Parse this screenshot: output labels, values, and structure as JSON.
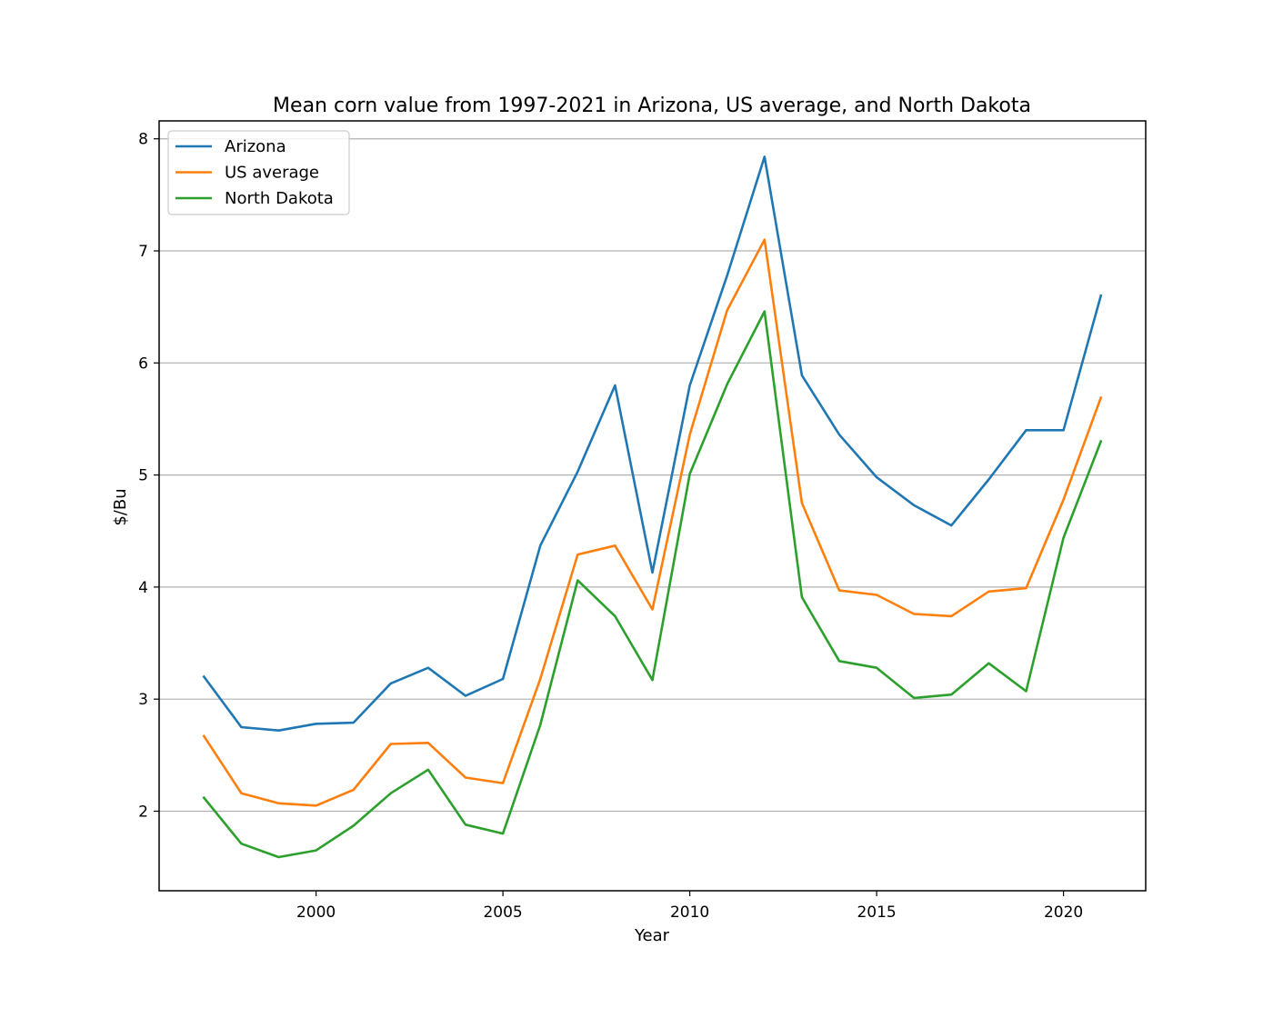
{
  "chart_data": {
    "type": "line",
    "title": "Mean corn value from 1997-2021 in Arizona, US average, and North Dakota",
    "xlabel": "Year",
    "ylabel": "$/Bu",
    "x": [
      1997,
      1998,
      1999,
      2000,
      2001,
      2002,
      2003,
      2004,
      2005,
      2006,
      2007,
      2008,
      2009,
      2010,
      2011,
      2012,
      2013,
      2014,
      2015,
      2016,
      2017,
      2018,
      2019,
      2020,
      2021
    ],
    "xlim": [
      1995.8,
      2022.2
    ],
    "ylim": [
      1.29,
      8.16
    ],
    "xticks": [
      2000,
      2005,
      2010,
      2015,
      2020
    ],
    "yticks": [
      2,
      3,
      4,
      5,
      6,
      7,
      8
    ],
    "grid": "y-axis major",
    "legend_position": "upper left",
    "series": [
      {
        "name": "Arizona",
        "color": "#1f77b4",
        "values": [
          3.2,
          2.75,
          2.72,
          2.78,
          2.79,
          3.14,
          3.28,
          3.03,
          3.18,
          4.37,
          5.03,
          5.8,
          4.13,
          5.8,
          6.78,
          7.84,
          5.89,
          5.36,
          4.98,
          4.73,
          4.55,
          4.96,
          5.4,
          5.4,
          6.6
        ]
      },
      {
        "name": "US average",
        "color": "#ff7f0e",
        "values": [
          2.67,
          2.16,
          2.07,
          2.05,
          2.19,
          2.6,
          2.61,
          2.3,
          2.25,
          3.18,
          4.29,
          4.37,
          3.8,
          5.36,
          6.47,
          7.1,
          4.75,
          3.97,
          3.93,
          3.76,
          3.74,
          3.96,
          3.99,
          4.78,
          5.69
        ]
      },
      {
        "name": "North Dakota",
        "color": "#2ca02c",
        "values": [
          2.12,
          1.71,
          1.59,
          1.65,
          1.87,
          2.16,
          2.37,
          1.88,
          1.8,
          2.77,
          4.06,
          3.74,
          3.17,
          5.01,
          5.81,
          6.46,
          3.91,
          3.34,
          3.28,
          3.01,
          3.04,
          3.32,
          3.07,
          4.44,
          5.3
        ]
      }
    ]
  }
}
